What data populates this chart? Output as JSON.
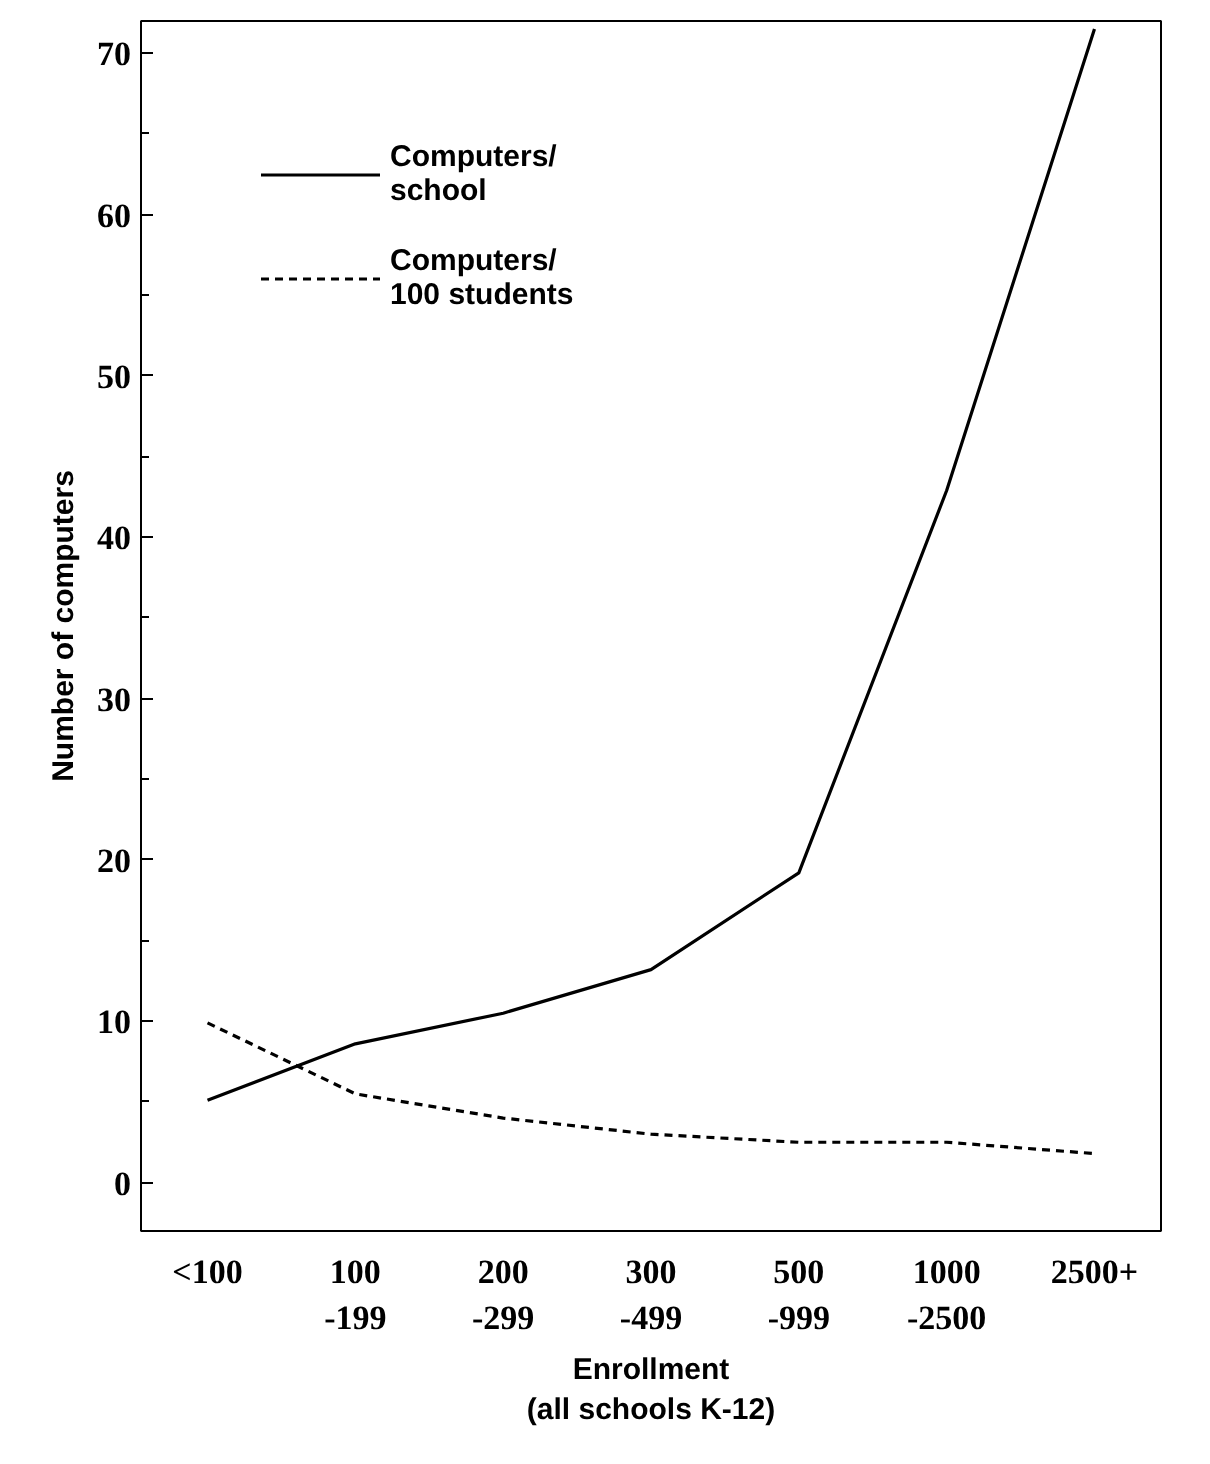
{
  "chart_data": {
    "type": "line",
    "xlabel": "Enrollment\n(all schools K-12)",
    "ylabel": "Number of computers",
    "categories": [
      "<100",
      "100\n-199",
      "200\n-299",
      "300\n-499",
      "500\n-999",
      "1000\n-2500",
      "2500+"
    ],
    "series": [
      {
        "name": "Computers/\nschool",
        "color": "#000000",
        "line_style": "solid",
        "values": [
          5.1,
          8.6,
          10.5,
          13.2,
          19.2,
          42.9,
          71.5
        ]
      },
      {
        "name": "Computers/\n100 students",
        "color": "#000000",
        "line_style": "dashed",
        "values": [
          9.9,
          5.5,
          4.0,
          3.0,
          2.5,
          2.5,
          1.8
        ]
      }
    ],
    "ylim": [
      -3,
      72
    ],
    "yticks": [
      0,
      10,
      20,
      30,
      40,
      50,
      60,
      70
    ],
    "grid": false,
    "legend": "top left",
    "marker": "none"
  }
}
